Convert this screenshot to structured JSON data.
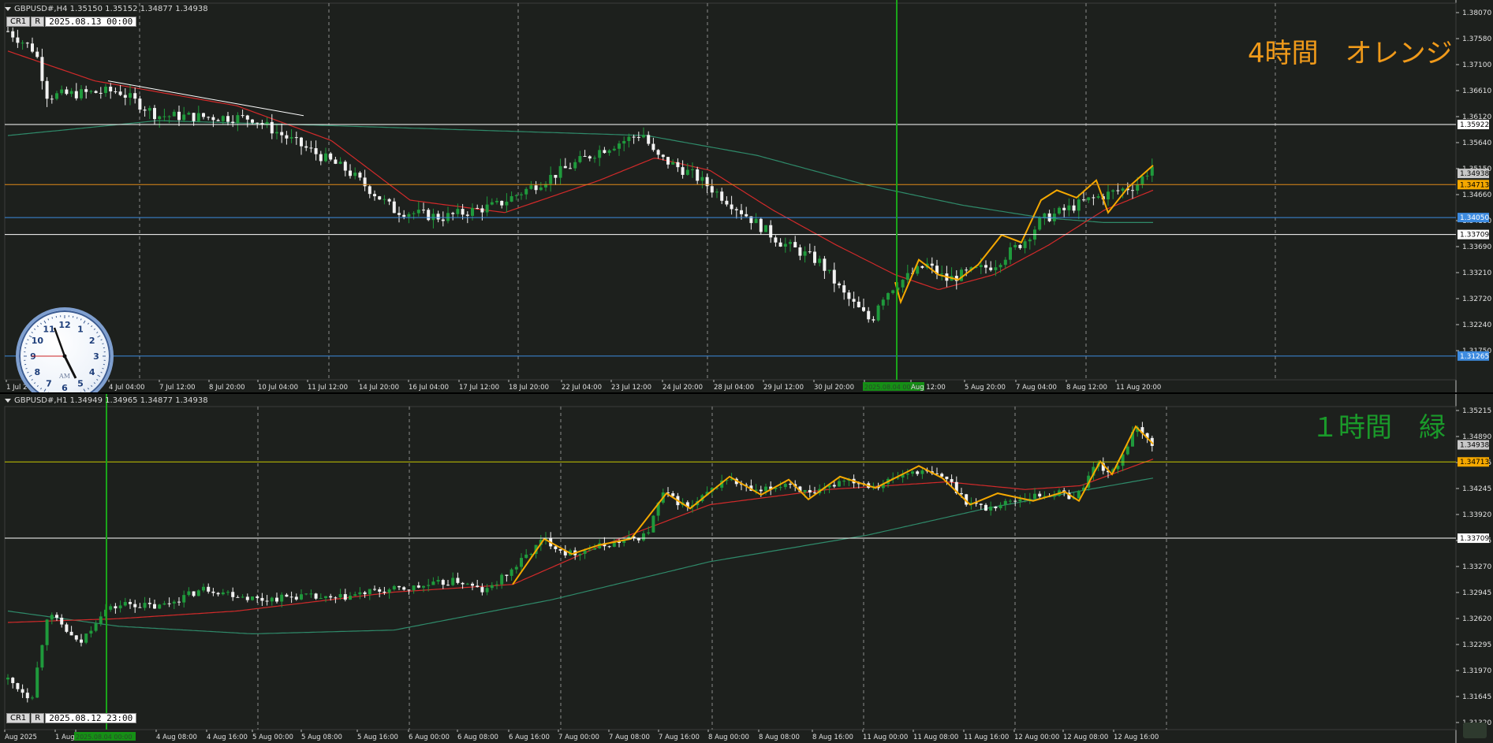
{
  "colors": {
    "background": "#1d201d",
    "grid": "#a8a8a8",
    "bull": "#1f9a3c",
    "bear": "#f2f2f2",
    "ma_fast": "#d22a2a",
    "ma_slow": "#2f8a6a",
    "zigzag": "#f5a800",
    "orange_line": "#e08a18",
    "blue_line": "#3d8be0",
    "white_line": "#ffffff",
    "vline": "#1aa51a",
    "label_orange": "#f09a1a",
    "label_green": "#1a9a2a",
    "yellow_line": "#c8c800"
  },
  "h4": {
    "header": "GBPUSD#,H4  1.35150 1.35152 1.34877 1.34938",
    "badge_cr": "CR1",
    "badge_r": "R",
    "datetime": "2025.08.13 00:00",
    "big_label": "4時間　オレンジ",
    "price_labels": [
      "1.38070",
      "1.37580",
      "1.37100",
      "1.36610",
      "1.36120",
      "1.35640",
      "1.35150",
      "1.34660",
      "1.34180",
      "1.33690",
      "1.33210",
      "1.32720",
      "1.32240",
      "1.31750"
    ],
    "price_range": [
      1.3085,
      1.383
    ],
    "hlines": [
      {
        "price": 1.35922,
        "label": "1.35922",
        "color": "#ffffff",
        "tag_bg": "#ffffff",
        "tag_fg": "#000000"
      },
      {
        "price": 1.34713,
        "label": "1.34713",
        "color": "#e08a18",
        "tag_bg": "#f5a800",
        "tag_fg": "#000000"
      },
      {
        "price": 1.3405,
        "label": "1.34050",
        "color": "#3d8be0",
        "tag_bg": "#3d8be0",
        "tag_fg": "#ffffff"
      },
      {
        "price": 1.33709,
        "label": "1.33709",
        "color": "#ffffff",
        "tag_bg": "#ffffff",
        "tag_fg": "#000000"
      },
      {
        "price": 1.31265,
        "label": "1.31265",
        "color": "#3d8be0",
        "tag_bg": "#3d8be0",
        "tag_fg": "#ffffff"
      }
    ],
    "bid_tag": {
      "price": 1.34938,
      "label": "1.34938"
    },
    "time_labels": [
      "1 Jul 2",
      "4 Jul 04:00",
      "7 Jul 12:00",
      "8 Jul 20:00",
      "10 Jul 04:00",
      "11 Jul 12:00",
      "14 Jul 20:00",
      "16 Jul 04:00",
      "17 Jul 12:00",
      "18 Jul 20:00",
      "22 Jul 04:00",
      "23 Jul 12:00",
      "24 Jul 20:00",
      "28 Jul 04:00",
      "29 Jul 12:00",
      "30 Jul 20:00",
      "2025.08.04 00:00",
      "Aug 12:00",
      "5 Aug 20:00",
      "7 Aug 04:00",
      "8 Aug 12:00",
      "11 Aug 20:00"
    ],
    "highlight_time_label": "2025.08.04 00:00"
  },
  "h1": {
    "header": "GBPUSD#,H1  1.34949 1.34965 1.34877 1.34938",
    "badge_cr": "CR1",
    "badge_r": "R",
    "datetime": "2025.08.12 23:00",
    "big_label": "１時間　緑",
    "price_labels": [
      "1.35215",
      "1.34890",
      "1.34565",
      "1.34245",
      "1.33920",
      "1.33595",
      "1.33270",
      "1.32945",
      "1.32620",
      "1.32295",
      "1.31970",
      "1.31645",
      "1.31320"
    ],
    "price_range": [
      1.312,
      1.354
    ],
    "hlines": [
      {
        "price": 1.34713,
        "label": "1.34713",
        "color": "#c8c800",
        "tag_bg": "#f5a800",
        "tag_fg": "#000000"
      },
      {
        "price": 1.33709,
        "label": "1.33709",
        "color": "#ffffff",
        "tag_bg": "#ffffff",
        "tag_fg": "#000000"
      }
    ],
    "bid_tag": {
      "price": 1.34938,
      "label": "1.34938"
    },
    "time_labels": [
      "Aug 2025",
      "1 Aug",
      "2025.08.04 00:00",
      "4 Aug 08:00",
      "4 Aug 16:00",
      "5 Aug 00:00",
      "5 Aug 08:00",
      "5 Aug 16:00",
      "6 Aug 00:00",
      "6 Aug 08:00",
      "6 Aug 16:00",
      "7 Aug 00:00",
      "7 Aug 08:00",
      "7 Aug 16:00",
      "8 Aug 00:00",
      "8 Aug 08:00",
      "8 Aug 16:00",
      "11 Aug 00:00",
      "11 Aug 08:00",
      "11 Aug 16:00",
      "12 Aug 00:00",
      "12 Aug 08:00",
      "12 Aug 16:00"
    ],
    "highlight_time_label": "2025.08.04 00:00"
  },
  "clock": {
    "am_pm": "AM",
    "numerals": [
      "12",
      "1",
      "2",
      "3",
      "4",
      "5",
      "6",
      "7",
      "8",
      "9",
      "10",
      "11"
    ]
  }
}
